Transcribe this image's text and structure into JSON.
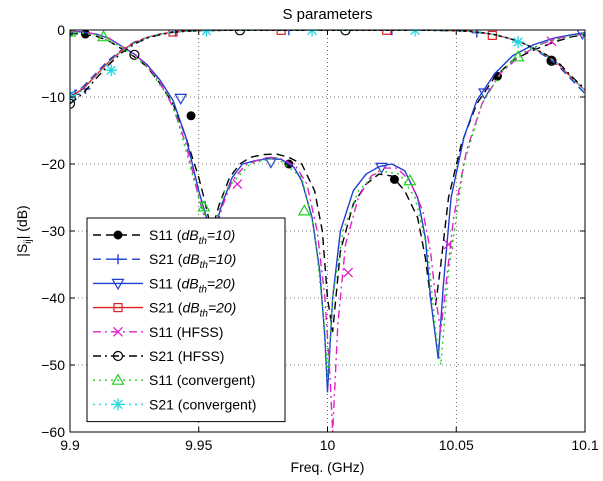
{
  "chart_data": {
    "type": "line",
    "title": "S parameters",
    "xlabel": "Freq. (GHz)",
    "ylabel_parts": {
      "base": "|S",
      "sub": "ij",
      "end": "| (dB)"
    },
    "xlim": [
      9.9,
      10.1
    ],
    "ylim": [
      -60,
      0
    ],
    "xticks": [
      9.9,
      9.95,
      10,
      10.05,
      10.1
    ],
    "xtick_labels": [
      "9.9",
      "9.95",
      "10",
      "10.05",
      "10.1"
    ],
    "yticks": [
      -60,
      -50,
      -40,
      -30,
      -20,
      -10,
      0
    ],
    "ytick_labels": [
      "−60",
      "−50",
      "−40",
      "−30",
      "−20",
      "−10",
      "0"
    ],
    "grid": true,
    "legend_position": "bottom-left",
    "series": [
      {
        "key": "s11_th10",
        "legend": {
          "base": "S11 (",
          "em": "dB",
          "sub": "th",
          "em2": "=10)"
        },
        "color": "#000000",
        "dash": "8,5",
        "marker": "dot",
        "x": [
          9.9,
          9.905,
          9.91,
          9.915,
          9.92,
          9.925,
          9.93,
          9.935,
          9.94,
          9.945,
          9.95,
          9.952,
          9.955,
          9.958,
          9.962,
          9.966,
          9.97,
          9.975,
          9.98,
          9.985,
          9.99,
          9.995,
          9.998,
          10.0,
          10.002,
          10.005,
          10.01,
          10.015,
          10.02,
          10.025,
          10.03,
          10.035,
          10.038,
          10.04,
          10.042,
          10.044,
          10.047,
          10.052,
          10.058,
          10.065,
          10.072,
          10.08,
          10.088,
          10.095,
          10.1
        ],
        "y": [
          -0.5,
          -0.6,
          -0.9,
          -1.6,
          -2.8,
          -4.0,
          -5.5,
          -8.0,
          -11.0,
          -16.0,
          -22.0,
          -25.0,
          -30.0,
          -26.0,
          -22.0,
          -20.0,
          -19.0,
          -18.6,
          -18.5,
          -19.0,
          -20.0,
          -24.0,
          -30.0,
          -40.0,
          -45.0,
          -33.0,
          -26.0,
          -23.0,
          -21.5,
          -21.8,
          -24.0,
          -28.0,
          -34.0,
          -40.0,
          -41.0,
          -35.0,
          -25.0,
          -17.0,
          -11.0,
          -7.0,
          -4.5,
          -3.0,
          -1.8,
          -1.0,
          -0.7
        ],
        "markers": [
          [
            9.9,
            -0.2
          ],
          [
            9.906,
            -0.6
          ],
          [
            9.947,
            -12.8
          ],
          [
            9.985,
            -20.0
          ],
          [
            10.026,
            -22.3
          ],
          [
            10.066,
            -6.9
          ],
          [
            10.087,
            -4.5
          ]
        ]
      },
      {
        "key": "s21_th10",
        "legend": {
          "base": "S21 (",
          "em": "dB",
          "sub": "th",
          "em2": "=10)"
        },
        "color": "#1f3fd0",
        "dash": "8,5",
        "marker": "plus",
        "x": [
          9.9,
          9.905,
          9.91,
          9.915,
          9.92,
          9.925,
          9.93,
          9.935,
          9.94,
          9.945,
          9.95,
          9.96,
          10.0,
          10.04,
          10.05,
          10.055,
          10.06,
          10.065,
          10.07,
          10.075,
          10.08,
          10.085,
          10.09,
          10.095,
          10.1
        ],
        "y": [
          -9.5,
          -8.5,
          -6.5,
          -4.5,
          -3.0,
          -1.8,
          -1.1,
          -0.6,
          -0.3,
          -0.15,
          -0.1,
          -0.05,
          -0.05,
          -0.05,
          -0.1,
          -0.2,
          -0.4,
          -0.7,
          -1.2,
          -1.8,
          -2.8,
          -4.0,
          -5.5,
          -7.5,
          -9.5
        ],
        "markers": [
          [
            9.902,
            -9.6
          ],
          [
            9.906,
            -8.8
          ],
          [
            9.941,
            -0.25
          ],
          [
            9.985,
            -0.05
          ],
          [
            10.025,
            -0.05
          ],
          [
            10.058,
            -0.4
          ]
        ]
      },
      {
        "key": "s11_th20",
        "legend": {
          "base": "S11 (",
          "em": "dB",
          "sub": "th",
          "em2": "=20)"
        },
        "color": "#1f3fd0",
        "dash": "",
        "marker": "tri-down",
        "x": [
          9.9,
          9.905,
          9.91,
          9.915,
          9.92,
          9.925,
          9.93,
          9.935,
          9.94,
          9.945,
          9.95,
          9.953,
          9.956,
          9.959,
          9.963,
          9.967,
          9.972,
          9.977,
          9.982,
          9.987,
          9.99,
          9.994,
          9.997,
          9.999,
          10.0,
          10.002,
          10.005,
          10.01,
          10.015,
          10.02,
          10.025,
          10.03,
          10.035,
          10.038,
          10.04,
          10.042,
          10.043,
          10.045,
          10.048,
          10.053,
          10.058,
          10.065,
          10.072,
          10.08,
          10.088,
          10.095,
          10.1
        ],
        "y": [
          -0.2,
          -0.3,
          -0.6,
          -1.2,
          -2.4,
          -3.6,
          -5.2,
          -7.5,
          -10.5,
          -16.0,
          -24.0,
          -28.0,
          -30.0,
          -26.0,
          -22.0,
          -20.0,
          -19.5,
          -19.2,
          -19.3,
          -20.5,
          -22.5,
          -28.0,
          -36.0,
          -46.0,
          -54.0,
          -40.0,
          -30.0,
          -24.0,
          -21.5,
          -20.4,
          -20.0,
          -21.0,
          -25.0,
          -31.0,
          -40.0,
          -46.0,
          -49.0,
          -38.0,
          -25.0,
          -16.0,
          -10.5,
          -6.5,
          -3.8,
          -2.2,
          -1.2,
          -0.7,
          -0.4
        ],
        "markers": [
          [
            9.9,
            -0.2
          ],
          [
            9.943,
            -10.2
          ],
          [
            9.978,
            -19.7
          ],
          [
            10.021,
            -20.5
          ],
          [
            10.061,
            -9.4
          ],
          [
            10.099,
            -0.5
          ]
        ]
      },
      {
        "key": "s21_th20",
        "legend": {
          "base": "S21 (",
          "em": "dB",
          "sub": "th",
          "em2": "=20)"
        },
        "color": "#e02020",
        "dash": "",
        "marker": "square",
        "x": [
          9.9,
          9.905,
          9.91,
          9.915,
          9.92,
          9.925,
          9.93,
          9.935,
          9.94,
          9.945,
          9.95,
          9.96,
          10.0,
          10.04,
          10.05,
          10.055,
          10.06,
          10.065,
          10.07,
          10.075,
          10.08,
          10.085,
          10.09,
          10.095,
          10.1
        ],
        "y": [
          -10.0,
          -8.8,
          -6.8,
          -4.8,
          -3.1,
          -1.9,
          -1.1,
          -0.6,
          -0.3,
          -0.15,
          -0.1,
          -0.05,
          -0.05,
          -0.05,
          -0.1,
          -0.2,
          -0.4,
          -0.7,
          -1.2,
          -1.8,
          -2.7,
          -3.8,
          -5.2,
          -7.2,
          -9.0
        ],
        "markers": [
          [
            9.94,
            -0.3
          ],
          [
            9.982,
            -0.05
          ],
          [
            10.023,
            -0.05
          ],
          [
            10.064,
            -0.8
          ]
        ]
      },
      {
        "key": "s11_hfss",
        "legend": {
          "base": "S11 (HFSS)"
        },
        "color": "#e020c8",
        "dash": "8,4,2,4",
        "marker": "x",
        "x": [
          9.9,
          9.905,
          9.91,
          9.915,
          9.92,
          9.925,
          9.93,
          9.935,
          9.94,
          9.945,
          9.95,
          9.953,
          9.956,
          9.959,
          9.963,
          9.968,
          9.973,
          9.978,
          9.983,
          9.988,
          9.992,
          9.996,
          9.999,
          10.001,
          10.002,
          10.004,
          10.007,
          10.012,
          10.017,
          10.022,
          10.027,
          10.032,
          10.037,
          10.04,
          10.042,
          10.044,
          10.046,
          10.049,
          10.054,
          10.06,
          10.067,
          10.075,
          10.083,
          10.09,
          10.096,
          10.1
        ],
        "y": [
          -0.2,
          -0.3,
          -0.6,
          -1.2,
          -2.4,
          -3.6,
          -5.3,
          -7.8,
          -11.5,
          -17.0,
          -25.0,
          -29.0,
          -31.0,
          -26.5,
          -22.5,
          -20.2,
          -19.4,
          -19.0,
          -19.3,
          -20.5,
          -23.0,
          -30.0,
          -40.0,
          -52.0,
          -60.0,
          -44.0,
          -32.0,
          -25.0,
          -21.8,
          -20.6,
          -20.6,
          -22.5,
          -27.0,
          -33.0,
          -40.0,
          -45.0,
          -38.0,
          -28.0,
          -18.0,
          -11.0,
          -6.5,
          -3.8,
          -2.1,
          -1.2,
          -0.8,
          -0.6
        ],
        "markers": [
          [
            9.965,
            -23.0
          ],
          [
            10.008,
            -36.2
          ],
          [
            10.047,
            -32.0
          ],
          [
            10.087,
            -1.7
          ]
        ]
      },
      {
        "key": "s21_hfss",
        "legend": {
          "base": "S21 (HFSS)"
        },
        "color": "#000000",
        "dash": "8,4,2,4",
        "marker": "circle",
        "x": [
          9.9,
          9.905,
          9.91,
          9.915,
          9.92,
          9.925,
          9.93,
          9.935,
          9.94,
          9.945,
          9.95,
          9.96,
          10.0,
          10.04,
          10.05,
          10.055,
          10.06,
          10.065,
          10.07,
          10.075,
          10.08,
          10.085,
          10.09,
          10.095,
          10.1
        ],
        "y": [
          -11.0,
          -9.5,
          -7.3,
          -5.2,
          -3.4,
          -2.1,
          -1.2,
          -0.7,
          -0.35,
          -0.2,
          -0.1,
          -0.05,
          -0.05,
          -0.05,
          -0.1,
          -0.2,
          -0.4,
          -0.7,
          -1.2,
          -1.8,
          -2.7,
          -3.7,
          -5.0,
          -7.0,
          -8.8
        ],
        "markers": [
          [
            9.9,
            -11.0
          ],
          [
            9.925,
            -3.7
          ],
          [
            9.966,
            -0.05
          ],
          [
            10.007,
            -0.05
          ],
          [
            10.087,
            -4.6
          ]
        ]
      },
      {
        "key": "s11_conv",
        "legend": {
          "base": "S11 (convergent)"
        },
        "color": "#20d020",
        "dash": "2,4",
        "marker": "tri-up",
        "x": [
          9.9,
          9.91,
          9.92,
          9.93,
          9.94,
          9.95,
          9.955,
          9.96,
          9.97,
          9.98,
          9.99,
          9.995,
          9.999,
          10.0,
          10.002,
          10.006,
          10.012,
          10.02,
          10.028,
          10.034,
          10.039,
          10.042,
          10.044,
          10.047,
          10.053,
          10.06,
          10.068,
          10.075,
          10.085,
          10.095,
          10.1
        ],
        "y": [
          -0.3,
          -0.7,
          -2.5,
          -5.5,
          -11.0,
          -25.0,
          -31.0,
          -24.0,
          -20.0,
          -19.0,
          -22.0,
          -30.0,
          -45.0,
          -52.0,
          -40.0,
          -30.0,
          -24.0,
          -21.0,
          -21.5,
          -25.0,
          -33.0,
          -45.0,
          -50.0,
          -36.0,
          -20.0,
          -11.0,
          -6.0,
          -3.5,
          -1.8,
          -0.9,
          -0.5
        ],
        "markers": [
          [
            9.9,
            -0.3
          ],
          [
            9.913,
            -1.0
          ],
          [
            9.952,
            -26.4
          ],
          [
            9.991,
            -27.0
          ],
          [
            10.032,
            -22.5
          ],
          [
            10.074,
            -4.0
          ]
        ]
      },
      {
        "key": "s21_conv",
        "legend": {
          "base": "S21 (convergent)"
        },
        "color": "#20d8e0",
        "dash": "2,4",
        "marker": "asterisk",
        "x": [
          9.9,
          9.905,
          9.91,
          9.915,
          9.92,
          9.925,
          9.93,
          9.935,
          9.94,
          9.945,
          9.95,
          9.96,
          10.0,
          10.04,
          10.05,
          10.055,
          10.06,
          10.065,
          10.07,
          10.075,
          10.08,
          10.085,
          10.09,
          10.095,
          10.1
        ],
        "y": [
          -10.2,
          -9.0,
          -6.9,
          -4.9,
          -3.2,
          -2.0,
          -1.1,
          -0.6,
          -0.3,
          -0.15,
          -0.1,
          -0.05,
          -0.05,
          -0.05,
          -0.1,
          -0.2,
          -0.4,
          -0.7,
          -1.2,
          -1.8,
          -2.7,
          -3.8,
          -5.2,
          -7.2,
          -9.0
        ],
        "markers": [
          [
            9.9,
            -9.8
          ],
          [
            9.916,
            -6.0
          ],
          [
            9.953,
            -0.1
          ],
          [
            9.994,
            -0.05
          ],
          [
            10.034,
            -0.05
          ],
          [
            10.074,
            -1.8
          ]
        ]
      }
    ]
  }
}
